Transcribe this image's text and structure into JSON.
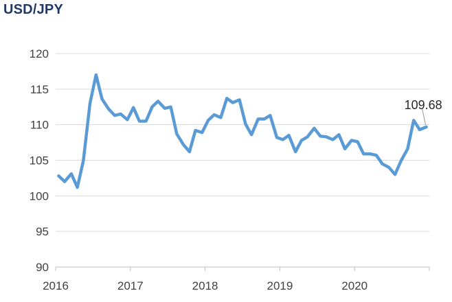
{
  "chart_data": {
    "type": "line",
    "title": "USD/JPY",
    "xlabel": "",
    "ylabel": "",
    "ylim": [
      90,
      120
    ],
    "xlim": [
      2016.0,
      2021.0
    ],
    "y_ticks": [
      "90",
      "95",
      "100",
      "105",
      "110",
      "115",
      "120"
    ],
    "x_ticks": [
      "2016",
      "2017",
      "2018",
      "2019",
      "2020"
    ],
    "grid": "horizontal",
    "legend": "none",
    "line_color": "#5b9bd5",
    "series": [
      {
        "x": [
          2016.04,
          2016.12,
          2016.21,
          2016.29,
          2016.37,
          2016.46,
          2016.54,
          2016.62,
          2016.71,
          2016.79,
          2016.87,
          2016.96,
          2017.04,
          2017.12,
          2017.21,
          2017.29,
          2017.37,
          2017.46,
          2017.54,
          2017.62,
          2017.71,
          2017.79,
          2017.87,
          2017.96,
          2018.04,
          2018.12,
          2018.21,
          2018.29,
          2018.37,
          2018.46,
          2018.54,
          2018.62,
          2018.71,
          2018.79,
          2018.87,
          2018.96,
          2019.04,
          2019.12,
          2019.21,
          2019.29,
          2019.37,
          2019.46,
          2019.54,
          2019.62,
          2019.71,
          2019.79,
          2019.87,
          2019.96,
          2020.04,
          2020.12,
          2020.21,
          2020.29,
          2020.37,
          2020.46,
          2020.54,
          2020.62,
          2020.71,
          2020.79,
          2020.87,
          2020.96
        ],
        "values": [
          102.8,
          102.0,
          103.1,
          101.2,
          104.9,
          113.0,
          117.0,
          113.6,
          112.2,
          111.3,
          111.5,
          110.7,
          112.4,
          110.5,
          110.5,
          112.5,
          113.3,
          112.3,
          112.5,
          108.7,
          107.2,
          106.2,
          109.2,
          108.9,
          110.6,
          111.4,
          111.0,
          113.7,
          113.1,
          113.5,
          110.1,
          108.6,
          110.8,
          110.8,
          111.3,
          108.2,
          107.9,
          108.5,
          106.2,
          107.8,
          108.3,
          109.5,
          108.4,
          108.3,
          107.9,
          108.6,
          106.6,
          107.8,
          107.6,
          105.9,
          105.9,
          105.7,
          104.5,
          104.0,
          103.0,
          104.9,
          106.6,
          110.6,
          109.3,
          109.68
        ]
      }
    ],
    "annotation": "109.68"
  }
}
